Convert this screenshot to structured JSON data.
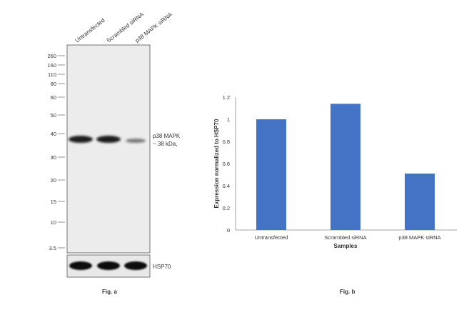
{
  "figure_a": {
    "caption": "Fig. a",
    "lanes": [
      "Untransfected",
      "Scrambled siRNA",
      "p38 MAPK siRNA"
    ],
    "markers": [
      "260",
      "160",
      "110",
      "80",
      "60",
      "50",
      "40",
      "30",
      "20",
      "15",
      "10",
      "3.5"
    ],
    "band_label_line1": "p38 MAPK",
    "band_label_line2": "~ 38 kDa,",
    "loading_control": "HSP70",
    "band_intensity": [
      1.0,
      1.0,
      0.55
    ]
  },
  "figure_b": {
    "caption": "Fig. b"
  },
  "chart_data": {
    "type": "bar",
    "categories": [
      "Untransfected",
      "Scrambled siRNA",
      "p38 MAPK siRNA"
    ],
    "values": [
      1.0,
      1.14,
      0.51
    ],
    "title": "",
    "xlabel": "Samples",
    "ylabel": "Expression normalized to HSP70",
    "ylim": [
      0,
      1.2
    ],
    "yticks": [
      "0",
      "0.2",
      "0.4",
      "0.6",
      "0.8",
      "1",
      "1.2"
    ],
    "grid": false,
    "bar_color": "#4472c4"
  }
}
